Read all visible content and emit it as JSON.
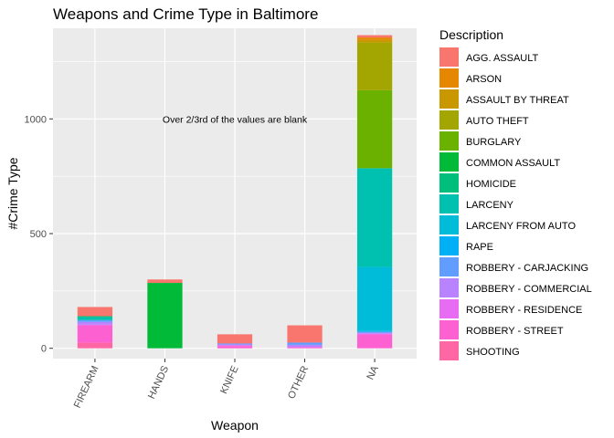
{
  "chart_data": {
    "type": "bar",
    "stacked": true,
    "title": "Weapons and Crime Type in Baltimore",
    "xlabel": "Weapon",
    "ylabel": "#Crime Type",
    "categories": [
      "FIREARM",
      "HANDS",
      "KNIFE",
      "OTHER",
      "NA"
    ],
    "ylim": [
      -45,
      1395
    ],
    "yticks": [
      0,
      500,
      1000
    ],
    "grid": true,
    "legend": {
      "title": "Description",
      "placement": "right"
    },
    "annotation": {
      "text": "Over 2/3rd of the values are blank",
      "x": 3,
      "y": 1000
    },
    "series": [
      {
        "name": "AGG. ASSAULT",
        "color": "#F8766D",
        "values": [
          40,
          15,
          40,
          75,
          10
        ]
      },
      {
        "name": "ARSON",
        "color": "#E58700",
        "values": [
          0,
          0,
          0,
          0,
          10
        ]
      },
      {
        "name": "ASSAULT BY THREAT",
        "color": "#C99800",
        "values": [
          0,
          0,
          0,
          0,
          12
        ]
      },
      {
        "name": "AUTO THEFT",
        "color": "#A3A500",
        "values": [
          0,
          0,
          0,
          0,
          208
        ]
      },
      {
        "name": "BURGLARY",
        "color": "#6BB100",
        "values": [
          0,
          0,
          0,
          0,
          340
        ]
      },
      {
        "name": "COMMON ASSAULT",
        "color": "#00BA38",
        "values": [
          0,
          285,
          0,
          0,
          0
        ]
      },
      {
        "name": "HOMICIDE",
        "color": "#00BF7D",
        "values": [
          5,
          0,
          0,
          0,
          0
        ]
      },
      {
        "name": "LARCENY",
        "color": "#00C0AF",
        "values": [
          12,
          0,
          0,
          0,
          430
        ]
      },
      {
        "name": "LARCENY FROM AUTO",
        "color": "#00BCD8",
        "values": [
          0,
          0,
          0,
          0,
          280
        ]
      },
      {
        "name": "RAPE",
        "color": "#00B0F6",
        "values": [
          0,
          0,
          0,
          0,
          3
        ]
      },
      {
        "name": "ROBBERY - CARJACKING",
        "color": "#619CFF",
        "values": [
          8,
          0,
          4,
          10,
          4
        ]
      },
      {
        "name": "ROBBERY - COMMERCIAL",
        "color": "#B983FF",
        "values": [
          12,
          0,
          4,
          10,
          5
        ]
      },
      {
        "name": "ROBBERY - RESIDENCE",
        "color": "#E76BF3",
        "values": [
          3,
          0,
          3,
          0,
          3
        ]
      },
      {
        "name": "ROBBERY - STREET",
        "color": "#FD61D1",
        "values": [
          75,
          0,
          10,
          5,
          60
        ]
      },
      {
        "name": "SHOOTING",
        "color": "#FF67A4",
        "values": [
          25,
          0,
          0,
          0,
          0
        ]
      }
    ]
  }
}
